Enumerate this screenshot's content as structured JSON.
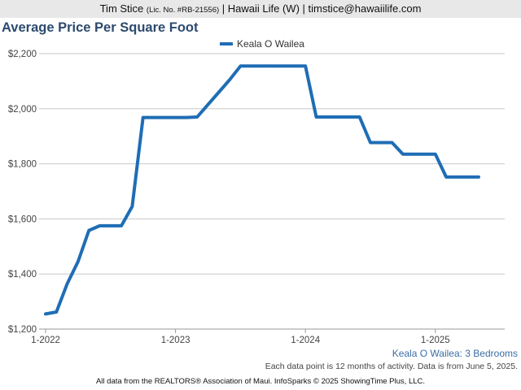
{
  "header": {
    "agent": "Tim Stice",
    "license": "(Lic. No. #RB-21556)",
    "rest": "| Hawaii Life (W) | timstice@hawaiilife.com"
  },
  "footer": {
    "subtitle": "Keala O Wailea: 3 Bedrooms",
    "note": "Each data point is 12 months of activity. Data is from June 5, 2025.",
    "source": "All data from the REALTORS® Association of Maui. InfoSparks © 2025 ShowingTime Plus, LLC."
  },
  "chart_data": {
    "type": "line",
    "title": "Average Price Per Square Foot",
    "legend_position": "top-center",
    "grid": "horizontal",
    "xlabel": "",
    "ylabel": "",
    "ylim": [
      1200,
      2200
    ],
    "y_ticks": [
      1200,
      1400,
      1600,
      1800,
      2000,
      2200
    ],
    "y_tick_labels": [
      "$1,200",
      "$1,400",
      "$1,600",
      "$1,800",
      "$2,000",
      "$2,200"
    ],
    "x_ticks": [
      "2022-01",
      "2023-01",
      "2024-01",
      "2025-01"
    ],
    "x_tick_labels": [
      "1-2022",
      "1-2023",
      "1-2024",
      "1-2025"
    ],
    "x_range": [
      "2022-01",
      "2025-05"
    ],
    "series": [
      {
        "name": "Keala O Wailea",
        "color": "#1f6db5",
        "x": [
          "2022-01",
          "2022-02",
          "2022-03",
          "2022-04",
          "2022-05",
          "2022-06",
          "2022-07",
          "2022-08",
          "2022-09",
          "2022-10",
          "2022-11",
          "2022-12",
          "2023-01",
          "2023-02",
          "2023-03",
          "2023-04",
          "2023-05",
          "2023-06",
          "2023-07",
          "2023-08",
          "2023-09",
          "2023-10",
          "2023-11",
          "2023-12",
          "2024-01",
          "2024-02",
          "2024-03",
          "2024-04",
          "2024-05",
          "2024-06",
          "2024-07",
          "2024-08",
          "2024-09",
          "2024-10",
          "2024-11",
          "2024-12",
          "2025-01",
          "2025-02",
          "2025-03",
          "2025-04",
          "2025-05"
        ],
        "values": [
          1255,
          1262,
          1365,
          1445,
          1558,
          1575,
          1575,
          1575,
          1645,
          1968,
          1968,
          1968,
          1968,
          1968,
          1970,
          2015,
          2060,
          2105,
          2155,
          2155,
          2155,
          2155,
          2155,
          2155,
          2155,
          1970,
          1970,
          1970,
          1970,
          1970,
          1877,
          1877,
          1877,
          1835,
          1835,
          1835,
          1835,
          1752,
          1752,
          1752,
          1752
        ]
      }
    ]
  }
}
